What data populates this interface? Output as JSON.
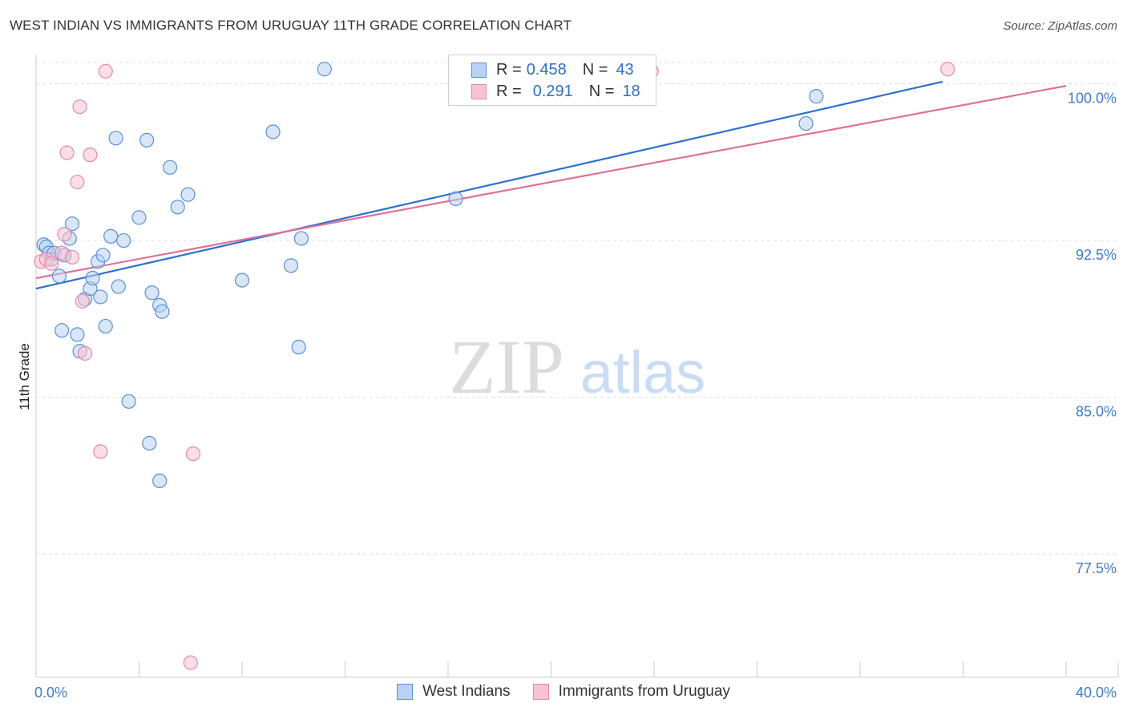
{
  "title": "WEST INDIAN VS IMMIGRANTS FROM URUGUAY 11TH GRADE CORRELATION CHART",
  "source": "Source: ZipAtlas.com",
  "watermark": {
    "zip": "ZIP",
    "atlas": "atlas"
  },
  "colors": {
    "blue_fill": "#b8d2f3",
    "blue_stroke": "#5b8fd6",
    "blue_line": "#2e6fd0",
    "pink_fill": "#f8c3d4",
    "pink_stroke": "#e389a9",
    "pink_line": "#e0709a",
    "tick_text": "#3f7ccc",
    "grid": "#dddddd"
  },
  "legend": {
    "rows": [
      {
        "r_label": "R =",
        "r_value": "0.458",
        "n_label": "N =",
        "n_value": "43",
        "series": "blue"
      },
      {
        "r_label": "R =",
        "r_value": "0.291",
        "n_label": "N =",
        "n_value": "18",
        "series": "pink"
      }
    ]
  },
  "chart_data": {
    "type": "scatter",
    "title": "WEST INDIAN VS IMMIGRANTS FROM URUGUAY 11TH GRADE CORRELATION CHART",
    "xlabel": "",
    "ylabel": "11th Grade",
    "xlim": [
      0,
      40
    ],
    "ylim": [
      71.6,
      101.4
    ],
    "x_tick_labels": [
      "0.0%",
      "40.0%"
    ],
    "y_ticks": [
      77.5,
      85.0,
      92.5,
      100.0
    ],
    "y_tick_labels": [
      "77.5%",
      "85.0%",
      "92.5%",
      "100.0%"
    ],
    "grid": "horizontal dashed",
    "series": [
      {
        "name": "West Indians",
        "color": "blue",
        "R": 0.458,
        "N": 43,
        "trend": {
          "x0": 0,
          "y0": 90.2,
          "x1": 35.2,
          "y1": 100.1
        },
        "points": [
          [
            0.3,
            92.3
          ],
          [
            0.4,
            92.2
          ],
          [
            0.5,
            91.9
          ],
          [
            0.6,
            91.6
          ],
          [
            0.7,
            91.9
          ],
          [
            0.9,
            90.8
          ],
          [
            1.0,
            88.2
          ],
          [
            1.1,
            91.8
          ],
          [
            1.3,
            92.6
          ],
          [
            1.4,
            93.3
          ],
          [
            1.6,
            88.0
          ],
          [
            1.7,
            87.2
          ],
          [
            1.9,
            89.7
          ],
          [
            2.1,
            90.2
          ],
          [
            2.2,
            90.7
          ],
          [
            2.4,
            91.5
          ],
          [
            2.5,
            89.8
          ],
          [
            2.6,
            91.8
          ],
          [
            2.7,
            88.4
          ],
          [
            2.9,
            92.7
          ],
          [
            3.1,
            97.4
          ],
          [
            3.2,
            90.3
          ],
          [
            3.4,
            92.5
          ],
          [
            3.6,
            84.8
          ],
          [
            4.0,
            93.6
          ],
          [
            4.3,
            97.3
          ],
          [
            4.4,
            82.8
          ],
          [
            4.5,
            90.0
          ],
          [
            4.8,
            81.0
          ],
          [
            4.8,
            89.4
          ],
          [
            4.9,
            89.1
          ],
          [
            5.2,
            96.0
          ],
          [
            5.5,
            94.1
          ],
          [
            5.9,
            94.7
          ],
          [
            8.0,
            90.6
          ],
          [
            9.2,
            97.7
          ],
          [
            9.9,
            91.3
          ],
          [
            10.2,
            87.4
          ],
          [
            10.3,
            92.6
          ],
          [
            11.2,
            100.7
          ],
          [
            16.3,
            94.5
          ],
          [
            29.9,
            98.1
          ],
          [
            30.3,
            99.4
          ]
        ]
      },
      {
        "name": "Immigrants from Uruguay",
        "color": "pink",
        "R": 0.291,
        "N": 18,
        "trend": {
          "x0": 0,
          "y0": 90.7,
          "x1": 40,
          "y1": 99.9
        },
        "points": [
          [
            0.2,
            91.5
          ],
          [
            0.4,
            91.6
          ],
          [
            0.6,
            91.4
          ],
          [
            1.0,
            91.9
          ],
          [
            1.1,
            92.8
          ],
          [
            1.2,
            96.7
          ],
          [
            1.4,
            91.7
          ],
          [
            1.6,
            95.3
          ],
          [
            1.7,
            98.9
          ],
          [
            1.8,
            89.6
          ],
          [
            1.9,
            87.1
          ],
          [
            2.1,
            96.6
          ],
          [
            2.5,
            82.4
          ],
          [
            2.7,
            100.6
          ],
          [
            6.1,
            82.3
          ],
          [
            6.0,
            72.3
          ],
          [
            23.9,
            100.6
          ],
          [
            35.4,
            100.7
          ]
        ]
      }
    ]
  },
  "bottom_legend": {
    "items": [
      {
        "label": "West Indians",
        "series": "blue"
      },
      {
        "label": "Immigrants from Uruguay",
        "series": "pink"
      }
    ]
  }
}
